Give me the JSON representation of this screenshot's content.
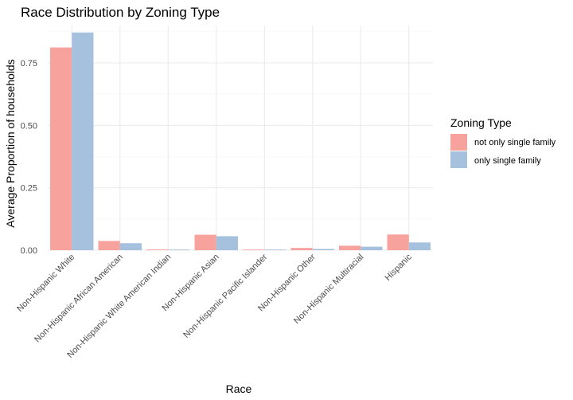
{
  "chart_data": {
    "type": "bar",
    "title": "Race Distribution by Zoning Type",
    "xlabel": "Race",
    "ylabel": "Average Proportion of households",
    "categories": [
      "Non-Hispanic White",
      "Non-Hispanic African American",
      "Non-Hispanic White American Indian",
      "Non-Hispanic Asian",
      "Non-Hispanic Pacific Islander",
      "Non-Hispanic Other",
      "Non-Hispanic Multiracial",
      "Hispanic"
    ],
    "series": [
      {
        "name": "not only single family",
        "color": "#F8A29E",
        "values": [
          0.812,
          0.037,
          0.003,
          0.062,
          0.001,
          0.009,
          0.018,
          0.063
        ]
      },
      {
        "name": "only single family",
        "color": "#A6C1DE",
        "values": [
          0.872,
          0.028,
          0.002,
          0.056,
          0.001,
          0.005,
          0.014,
          0.031
        ]
      }
    ],
    "ylim": [
      0,
      0.9
    ],
    "yticks": [
      0,
      0.25,
      0.5,
      0.75
    ],
    "ytick_labels": [
      "0.00",
      "0.25",
      "0.50",
      "0.75"
    ],
    "grid": true,
    "legend": {
      "title": "Zoning Type",
      "placement": "right"
    }
  }
}
